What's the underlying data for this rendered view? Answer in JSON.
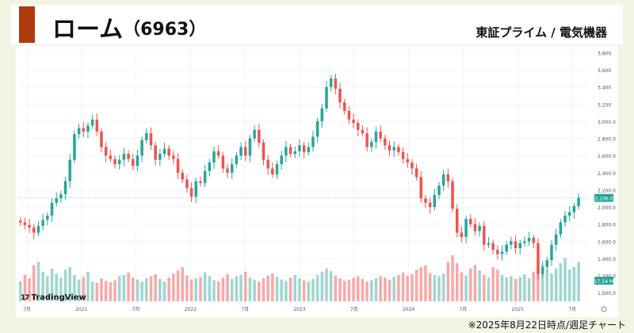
{
  "header": {
    "company": "ローム",
    "code": "（6963）",
    "market": "東証プライム / 電気機器"
  },
  "footer": {
    "note": "※2025年8月22日時点/週足チャート"
  },
  "watermark": {
    "brand": "TradingView",
    "logo_text": "17"
  },
  "colors": {
    "up": "#26a69a",
    "down": "#ef5350",
    "accent": "#b03a0e",
    "vol_up": "#9fd6cf",
    "vol_down": "#f7a9a7"
  },
  "chart_data": {
    "type": "candlestick",
    "x_ticks": [
      "7月",
      "2021",
      "7月",
      "2022",
      "7月",
      "2023",
      "7月",
      "2024",
      "7月",
      "2025",
      "7月"
    ],
    "y_ticks": [
      "3,800",
      "3,600",
      "3,400",
      "3,200",
      "3,000.0",
      "2,800.0",
      "2,600.0",
      "2,400.0",
      "2,200.0",
      "2,000.0",
      "1,800.0",
      "1,600.0",
      "1,400.0",
      "1,200.0",
      "1,000.0"
    ],
    "ylim": [
      900,
      3860
    ],
    "last_price_label": "2,106.0",
    "last_price": 2106,
    "volume_label": "17.54 M",
    "series_close": [
      1820,
      1790,
      1760,
      1700,
      1780,
      1850,
      1900,
      2050,
      2100,
      2150,
      2300,
      2550,
      2850,
      2920,
      2880,
      2950,
      3020,
      2880,
      2700,
      2600,
      2560,
      2500,
      2550,
      2620,
      2560,
      2480,
      2600,
      2780,
      2860,
      2720,
      2550,
      2620,
      2680,
      2600,
      2560,
      2400,
      2320,
      2220,
      2120,
      2300,
      2280,
      2420,
      2520,
      2650,
      2600,
      2450,
      2400,
      2500,
      2600,
      2700,
      2600,
      2800,
      2900,
      2750,
      2550,
      2450,
      2380,
      2500,
      2600,
      2700,
      2620,
      2650,
      2720,
      2640,
      2700,
      2820,
      3000,
      3150,
      3400,
      3500,
      3380,
      3220,
      3120,
      3020,
      2980,
      2900,
      2860,
      2700,
      2760,
      2880,
      2800,
      2720,
      2660,
      2700,
      2640,
      2560,
      2520,
      2450,
      2350,
      2100,
      2050,
      2000,
      2140,
      2250,
      2380,
      2300,
      1980,
      1700,
      1650,
      1860,
      1800,
      1720,
      1780,
      1560,
      1580,
      1500,
      1450,
      1480,
      1560,
      1600,
      1520,
      1580,
      1600,
      1640,
      1580,
      1220,
      1300,
      1380,
      1560,
      1680,
      1820,
      1900,
      1940,
      2010,
      2106
    ],
    "volume": [
      30,
      40,
      35,
      55,
      60,
      45,
      38,
      50,
      42,
      36,
      48,
      52,
      40,
      33,
      37,
      45,
      30,
      28,
      35,
      31,
      29,
      32,
      38,
      40,
      44,
      36,
      33,
      30,
      35,
      38,
      41,
      34,
      30,
      36,
      42,
      47,
      52,
      39,
      33,
      35,
      37,
      44,
      38,
      32,
      30,
      36,
      41,
      34,
      38,
      40,
      45,
      36,
      32,
      30,
      35,
      39,
      42,
      37,
      33,
      31,
      36,
      40,
      35,
      32,
      30,
      34,
      40,
      45,
      50,
      46,
      39,
      35,
      31,
      33,
      36,
      38,
      34,
      30,
      32,
      35,
      38,
      36,
      33,
      37,
      40,
      44,
      39,
      41,
      48,
      52,
      55,
      43,
      40,
      38,
      42,
      60,
      70,
      58,
      44,
      39,
      50,
      55,
      47,
      40,
      36,
      52,
      48,
      40,
      36,
      38,
      34,
      37,
      41,
      35,
      45,
      62,
      55,
      47,
      42,
      50,
      58,
      66,
      48,
      52,
      60
    ],
    "title": "",
    "xlabel": "",
    "ylabel": "",
    "grid": true
  }
}
